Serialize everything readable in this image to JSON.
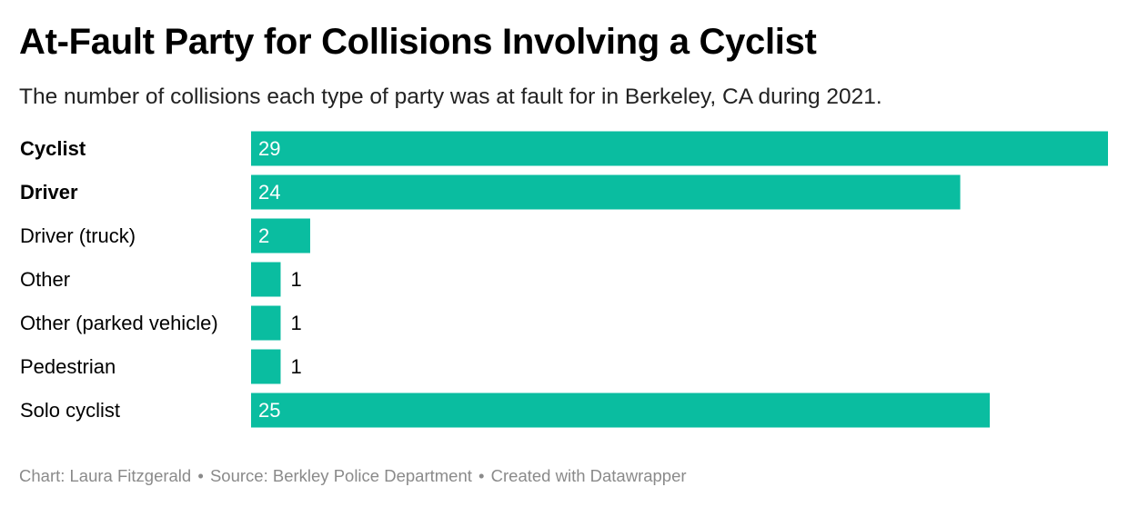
{
  "title": "At-Fault Party for Collisions Involving a Cyclist",
  "subtitle": "The number of collisions each type of party was at fault for in Berkeley, CA during 2021.",
  "footer": {
    "chart_credit": "Chart: Laura Fitzgerald",
    "source": "Source: Berkley Police Department",
    "created_with": "Created with Datawrapper",
    "separator": "•"
  },
  "colors": {
    "bar": "#0abda0",
    "label_inside": "#ffffff",
    "label_outside": "#000000",
    "category_text": "#000000",
    "footer_text": "#8a8a8a"
  },
  "chart_data": {
    "type": "bar",
    "orientation": "horizontal",
    "categories": [
      "Cyclist",
      "Driver",
      "Driver (truck)",
      "Other",
      "Other (parked vehicle)",
      "Pedestrian",
      "Solo cyclist"
    ],
    "emphasized_categories": [
      "Cyclist",
      "Driver"
    ],
    "values": [
      29,
      24,
      2,
      1,
      1,
      1,
      25
    ],
    "xlim": [
      0,
      29
    ],
    "grid": false,
    "legend": "none"
  }
}
